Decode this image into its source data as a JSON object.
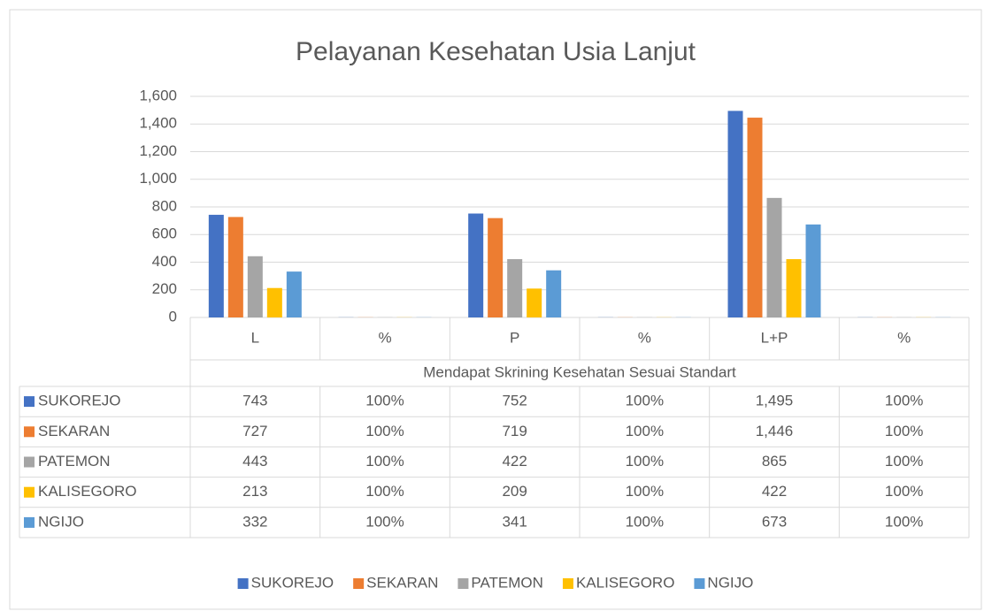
{
  "chart_data": {
    "type": "bar",
    "title": "Pelayanan Kesehatan Usia Lanjut",
    "categories": [
      "L",
      "%",
      "P",
      "%",
      "L+P",
      "%"
    ],
    "x_group_label": "Mendapat Skrining Kesehatan Sesuai Standart",
    "series": [
      {
        "name": "SUKOREJO",
        "color": "#4472c4",
        "values": [
          743,
          1,
          752,
          1,
          1495,
          1
        ],
        "value_labels": [
          "743",
          "100%",
          "752",
          "100%",
          "1,495",
          "100%"
        ]
      },
      {
        "name": "SEKARAN",
        "color": "#ed7d31",
        "values": [
          727,
          1,
          719,
          1,
          1446,
          1
        ],
        "value_labels": [
          "727",
          "100%",
          "719",
          "100%",
          "1,446",
          "100%"
        ]
      },
      {
        "name": "PATEMON",
        "color": "#a5a5a5",
        "values": [
          443,
          1,
          422,
          1,
          865,
          1
        ],
        "value_labels": [
          "443",
          "100%",
          "422",
          "100%",
          "865",
          "100%"
        ]
      },
      {
        "name": "KALISEGORO",
        "color": "#ffc000",
        "values": [
          213,
          1,
          209,
          1,
          422,
          1
        ],
        "value_labels": [
          "213",
          "100%",
          "209",
          "100%",
          "422",
          "100%"
        ]
      },
      {
        "name": "NGIJO",
        "color": "#5b9bd5",
        "values": [
          332,
          1,
          341,
          1,
          673,
          1
        ],
        "value_labels": [
          "332",
          "100%",
          "341",
          "100%",
          "673",
          "100%"
        ]
      }
    ],
    "ylim": [
      0,
      1600
    ],
    "yticks": [
      0,
      200,
      400,
      600,
      800,
      {
        "value": 1000,
        "label": "1,000"
      },
      {
        "value": 1200,
        "label": "1,200"
      },
      {
        "value": 1400,
        "label": "1,400"
      },
      {
        "value": 1600,
        "label": "1,600"
      }
    ],
    "grid": true,
    "legend": "bottom"
  }
}
